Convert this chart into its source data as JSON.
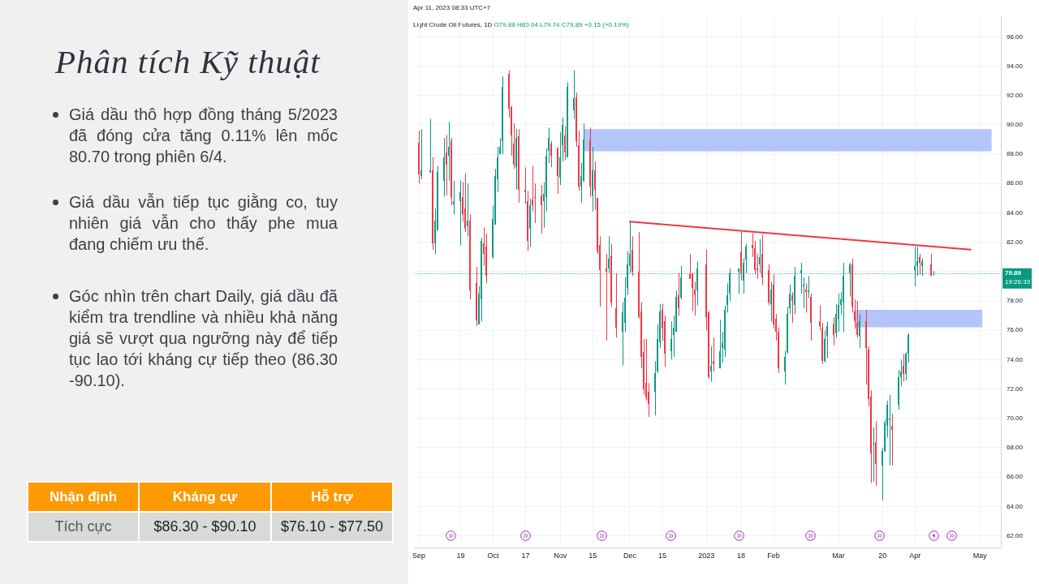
{
  "chart_data": [
    {
      "type": "other",
      "title": "Phân tích Kỹ thuật",
      "annotations": [
        "Giá dầu thô hợp đồng tháng 5/2023 đã đóng cửa tăng 0.11% lên mốc 80.70 trong phiên 6/4.",
        "Giá dầu vẫn tiếp tục giằng co, tuy nhiên giá vẫn cho thấy phe mua đang chiếm ưu thế.",
        "Góc nhìn trên chart Daily, giá dầu đã kiểm tra trendline và nhiều khả năng giá sẽ vượt qua ngưỡng này để tiếp tục lao tới kháng cự tiếp theo (86.30 -90.10)."
      ],
      "categories": [
        "Nhận định",
        "Kháng cự",
        "Hỗ trợ"
      ],
      "value_labels": [
        "Tích cực",
        "$86.30 - $90.10",
        "$76.10 - $77.50"
      ]
    },
    {
      "type": "candlestick",
      "title": "Light Crude Oil Futures, 1D",
      "subtitle": "O79.88 H80.04 L79.74 C79.89 +0.15 (+0.19%)",
      "annotations": [
        "Apr 11, 2023 08:33 UTC+7"
      ],
      "x": [
        "2022-09-01",
        "2022-09-02",
        "2022-09-06",
        "2022-09-07",
        "2022-09-08",
        "2022-09-09",
        "2022-09-12",
        "2022-09-13",
        "2022-09-14",
        "2022-09-15",
        "2022-09-16",
        "2022-09-19",
        "2022-09-20",
        "2022-09-21",
        "2022-09-22",
        "2022-09-23",
        "2022-09-26",
        "2022-09-27",
        "2022-09-28",
        "2022-09-29",
        "2022-09-30",
        "2022-10-03",
        "2022-10-04",
        "2022-10-05",
        "2022-10-06",
        "2022-10-07",
        "2022-10-10",
        "2022-10-11",
        "2022-10-12",
        "2022-10-13",
        "2022-10-14",
        "2022-10-17",
        "2022-10-18",
        "2022-10-19",
        "2022-10-20",
        "2022-10-21",
        "2022-10-24",
        "2022-10-25",
        "2022-10-26",
        "2022-10-27",
        "2022-10-28",
        "2022-10-31",
        "2022-11-01",
        "2022-11-02",
        "2022-11-03",
        "2022-11-04",
        "2022-11-07",
        "2022-11-08",
        "2022-11-09",
        "2022-11-10",
        "2022-11-11",
        "2022-11-14",
        "2022-11-15",
        "2022-11-16",
        "2022-11-17",
        "2022-11-18",
        "2022-11-21",
        "2022-11-22",
        "2022-11-23",
        "2022-11-25",
        "2022-11-28",
        "2022-11-29",
        "2022-11-30",
        "2022-12-01",
        "2022-12-02",
        "2022-12-05",
        "2022-12-06",
        "2022-12-07",
        "2022-12-08",
        "2022-12-09",
        "2022-12-12",
        "2022-12-13",
        "2022-12-14",
        "2022-12-15",
        "2022-12-16",
        "2022-12-19",
        "2022-12-20",
        "2022-12-21",
        "2022-12-22",
        "2022-12-23",
        "2022-12-27",
        "2022-12-28",
        "2022-12-29",
        "2022-12-30",
        "2023-01-03",
        "2023-01-04",
        "2023-01-05",
        "2023-01-06",
        "2023-01-09",
        "2023-01-10",
        "2023-01-11",
        "2023-01-12",
        "2023-01-13",
        "2023-01-17",
        "2023-01-18",
        "2023-01-19",
        "2023-01-20",
        "2023-01-23",
        "2023-01-24",
        "2023-01-25",
        "2023-01-26",
        "2023-01-27",
        "2023-01-30",
        "2023-01-31",
        "2023-02-01",
        "2023-02-02",
        "2023-02-03",
        "2023-02-06",
        "2023-02-07",
        "2023-02-08",
        "2023-02-09",
        "2023-02-10",
        "2023-02-13",
        "2023-02-14",
        "2023-02-15",
        "2023-02-16",
        "2023-02-17",
        "2023-02-21",
        "2023-02-22",
        "2023-02-23",
        "2023-02-24",
        "2023-02-27",
        "2023-02-28",
        "2023-03-01",
        "2023-03-02",
        "2023-03-03",
        "2023-03-06",
        "2023-03-07",
        "2023-03-08",
        "2023-03-09",
        "2023-03-10",
        "2023-03-13",
        "2023-03-14",
        "2023-03-15",
        "2023-03-16",
        "2023-03-17",
        "2023-03-20",
        "2023-03-21",
        "2023-03-22",
        "2023-03-23",
        "2023-03-24",
        "2023-03-27",
        "2023-03-28",
        "2023-03-29",
        "2023-03-30",
        "2023-03-31",
        "2023-04-03",
        "2023-04-04",
        "2023-04-05",
        "2023-04-06",
        "2023-04-10",
        "2023-04-11"
      ],
      "ohlc": [
        [
          88.8,
          89.6,
          86.0,
          86.6
        ],
        [
          86.5,
          89.7,
          86.3,
          86.9
        ],
        [
          86.8,
          90.4,
          86.7,
          86.9
        ],
        [
          86.9,
          87.8,
          81.5,
          81.9
        ],
        [
          81.9,
          84.3,
          81.2,
          83.5
        ],
        [
          82.8,
          87.2,
          82.8,
          86.8
        ],
        [
          86.2,
          89.1,
          85.1,
          87.8
        ],
        [
          88.1,
          89.3,
          85.2,
          87.3
        ],
        [
          87.9,
          90.2,
          86.2,
          88.5
        ],
        [
          88.9,
          89.1,
          84.5,
          85.1
        ],
        [
          84.6,
          86.2,
          83.9,
          84.8
        ],
        [
          84.8,
          86.2,
          81.8,
          85.4
        ],
        [
          85.1,
          86.1,
          83.4,
          83.9
        ],
        [
          84.3,
          86.7,
          82.7,
          82.9
        ],
        [
          83.1,
          86.0,
          82.4,
          83.5
        ],
        [
          83.5,
          83.9,
          78.1,
          78.7
        ],
        [
          79.2,
          80.3,
          76.3,
          76.7
        ],
        [
          76.4,
          79.0,
          76.4,
          78.5
        ],
        [
          78.1,
          82.3,
          76.6,
          82.1
        ],
        [
          81.9,
          83.0,
          80.4,
          81.2
        ],
        [
          81.7,
          82.6,
          79.2,
          79.7
        ],
        [
          81.0,
          84.5,
          80.9,
          83.6
        ],
        [
          83.2,
          87.0,
          83.2,
          86.5
        ],
        [
          86.3,
          88.5,
          85.4,
          87.8
        ],
        [
          88.0,
          89.1,
          88.0,
          88.5
        ],
        [
          88.9,
          93.3,
          88.0,
          92.6
        ],
        [
          93.5,
          93.7,
          90.5,
          91.1
        ],
        [
          91.2,
          91.3,
          87.9,
          89.3
        ],
        [
          88.7,
          90.1,
          87.0,
          87.3
        ],
        [
          87.1,
          89.7,
          85.6,
          89.1
        ],
        [
          89.2,
          89.7,
          84.7,
          85.6
        ],
        [
          85.6,
          87.1,
          84.6,
          85.4
        ],
        [
          84.8,
          85.5,
          81.4,
          82.1
        ],
        [
          82.9,
          85.0,
          81.7,
          84.5
        ],
        [
          84.9,
          87.2,
          84.1,
          84.5
        ],
        [
          85.1,
          86.0,
          83.3,
          85.0
        ],
        [
          85.2,
          85.9,
          82.6,
          84.5
        ],
        [
          84.8,
          86.1,
          83.0,
          85.3
        ],
        [
          85.1,
          88.4,
          84.1,
          87.9
        ],
        [
          88.2,
          89.8,
          87.4,
          89.1
        ],
        [
          88.7,
          88.9,
          87.1,
          87.9
        ],
        [
          88.4,
          88.5,
          85.3,
          86.5
        ],
        [
          86.4,
          89.5,
          85.9,
          87.8
        ],
        [
          88.6,
          90.5,
          87.5,
          90.0
        ],
        [
          89.3,
          89.9,
          87.6,
          88.1
        ],
        [
          87.8,
          92.9,
          87.8,
          92.6
        ],
        [
          91.0,
          93.7,
          90.4,
          91.8
        ],
        [
          91.9,
          92.2,
          88.5,
          88.9
        ],
        [
          88.6,
          89.6,
          85.5,
          85.8
        ],
        [
          85.8,
          87.4,
          84.7,
          86.5
        ],
        [
          86.2,
          90.1,
          86.1,
          89.0
        ],
        [
          89.0,
          89.8,
          85.1,
          85.8
        ],
        [
          85.2,
          88.5,
          84.1,
          86.9
        ],
        [
          86.9,
          87.5,
          84.2,
          85.6
        ],
        [
          85.0,
          85.0,
          81.2,
          81.4
        ],
        [
          81.8,
          82.4,
          77.6,
          80.1
        ],
        [
          80.2,
          81.2,
          75.3,
          80.0
        ],
        [
          80.2,
          82.4,
          79.9,
          80.9
        ],
        [
          81.1,
          81.9,
          77.6,
          77.9
        ],
        [
          77.5,
          79.9,
          75.5,
          76.2
        ],
        [
          75.9,
          77.9,
          73.6,
          77.2
        ],
        [
          76.5,
          79.6,
          75.9,
          78.2
        ],
        [
          78.9,
          81.4,
          78.4,
          80.5
        ],
        [
          80.4,
          83.4,
          79.9,
          81.2
        ],
        [
          81.5,
          82.4,
          79.7,
          80.0
        ],
        [
          80.0,
          82.7,
          76.8,
          76.9
        ],
        [
          77.3,
          77.9,
          73.4,
          74.2
        ],
        [
          74.5,
          75.4,
          71.6,
          72.0
        ],
        [
          72.4,
          75.4,
          71.2,
          71.4
        ],
        [
          71.8,
          72.4,
          70.1,
          71.0
        ],
        [
          71.8,
          73.9,
          70.2,
          73.1
        ],
        [
          73.2,
          76.4,
          73.1,
          75.4
        ],
        [
          75.2,
          77.8,
          74.8,
          77.3
        ],
        [
          77.4,
          77.8,
          75.3,
          76.1
        ],
        [
          76.6,
          77.0,
          73.5,
          74.4
        ],
        [
          74.6,
          76.6,
          74.0,
          75.4
        ],
        [
          75.7,
          77.0,
          74.2,
          76.2
        ],
        [
          75.9,
          78.7,
          75.9,
          78.3
        ],
        [
          78.4,
          79.9,
          77.0,
          77.5
        ],
        [
          78.2,
          80.4,
          78.1,
          79.6
        ],
        [
          79.9,
          81.2,
          79.5,
          79.5
        ],
        [
          79.9,
          79.9,
          77.3,
          78.9
        ],
        [
          78.8,
          79.3,
          77.0,
          78.4
        ],
        [
          78.7,
          80.7,
          77.7,
          80.2
        ],
        [
          80.5,
          81.5,
          76.0,
          76.9
        ],
        [
          77.2,
          77.3,
          72.7,
          72.8
        ],
        [
          73.2,
          74.9,
          72.5,
          73.6
        ],
        [
          73.9,
          75.5,
          73.2,
          73.7
        ],
        [
          73.4,
          76.7,
          73.4,
          74.6
        ],
        [
          74.8,
          75.9,
          73.8,
          75.1
        ],
        [
          74.7,
          77.7,
          74.2,
          77.4
        ],
        [
          77.7,
          79.2,
          77.2,
          78.4
        ],
        [
          78.5,
          80.2,
          78.0,
          79.9
        ],
        [
          80.0,
          80.2,
          78.5,
          80.2
        ],
        [
          81.3,
          82.7,
          79.4,
          79.9
        ],
        [
          79.4,
          80.9,
          78.5,
          80.6
        ],
        [
          80.8,
          81.9,
          79.9,
          81.7
        ],
        [
          81.8,
          82.6,
          81.0,
          81.6
        ],
        [
          81.6,
          82.1,
          79.8,
          80.1
        ],
        [
          80.2,
          81.2,
          79.5,
          80.1
        ],
        [
          80.5,
          82.2,
          79.9,
          81.0
        ],
        [
          81.2,
          82.5,
          79.1,
          79.6
        ],
        [
          80.1,
          80.5,
          77.7,
          77.9
        ],
        [
          77.8,
          79.3,
          76.6,
          78.8
        ],
        [
          79.1,
          79.8,
          76.1,
          76.4
        ],
        [
          76.8,
          77.1,
          75.3,
          75.9
        ],
        [
          75.9,
          76.2,
          73.1,
          73.4
        ],
        [
          73.2,
          74.6,
          72.3,
          74.2
        ],
        [
          74.5,
          77.6,
          74.4,
          77.1
        ],
        [
          77.5,
          79.1,
          77.1,
          78.5
        ],
        [
          78.4,
          78.6,
          76.5,
          78.0
        ],
        [
          77.7,
          80.3,
          77.1,
          79.7
        ],
        [
          79.9,
          80.6,
          78.5,
          80.1
        ],
        [
          79.0,
          79.6,
          77.5,
          79.1
        ],
        [
          78.8,
          79.2,
          77.2,
          78.6
        ],
        [
          78.6,
          79.7,
          78.2,
          78.7
        ],
        [
          78.3,
          78.5,
          75.3,
          76.5
        ],
        [
          76.6,
          77.7,
          76.0,
          76.3
        ],
        [
          76.1,
          76.5,
          73.7,
          73.9
        ],
        [
          73.9,
          76.0,
          73.8,
          75.4
        ],
        [
          75.6,
          76.6,
          74.1,
          76.3
        ],
        [
          76.4,
          76.9,
          75.0,
          75.7
        ],
        [
          75.8,
          77.8,
          75.5,
          77.1
        ],
        [
          76.8,
          78.5,
          75.9,
          77.7
        ],
        [
          77.7,
          78.6,
          77.1,
          78.1
        ],
        [
          77.9,
          80.6,
          75.9,
          79.7
        ],
        [
          79.9,
          80.6,
          78.3,
          80.5
        ],
        [
          80.5,
          80.9,
          77.2,
          77.6
        ],
        [
          77.3,
          78.1,
          76.1,
          76.6
        ],
        [
          76.5,
          78.0,
          75.5,
          75.7
        ],
        [
          75.6,
          77.1,
          74.8,
          76.6
        ],
        [
          76.6,
          77.4,
          72.3,
          74.8
        ],
        [
          74.7,
          74.9,
          70.8,
          71.3
        ],
        [
          71.5,
          71.9,
          65.6,
          67.6
        ],
        [
          68.2,
          69.4,
          65.7,
          68.3
        ],
        [
          68.4,
          69.8,
          65.4,
          66.9
        ],
        [
          66.8,
          68.0,
          64.4,
          67.8
        ],
        [
          67.8,
          69.9,
          67.7,
          69.7
        ],
        [
          69.5,
          71.2,
          68.7,
          70.9
        ],
        [
          69.9,
          71.6,
          66.8,
          70.0
        ],
        [
          69.5,
          70.3,
          66.8,
          69.2
        ],
        [
          70.9,
          73.3,
          70.6,
          72.8
        ],
        [
          72.8,
          74.0,
          72.2,
          73.2
        ],
        [
          73.6,
          74.4,
          72.5,
          73.0
        ],
        [
          73.0,
          74.5,
          72.6,
          74.4
        ],
        [
          74.4,
          75.8,
          73.8,
          75.7
        ],
        [
          80.1,
          81.7,
          79.0,
          80.4
        ],
        [
          80.4,
          81.7,
          79.7,
          80.7
        ],
        [
          81.0,
          81.2,
          79.8,
          80.6
        ],
        [
          80.4,
          80.9,
          79.7,
          80.7
        ],
        [
          80.5,
          81.2,
          79.7,
          79.7
        ],
        [
          79.88,
          80.04,
          79.74,
          79.89
        ]
      ],
      "colors": [
        "#f23645",
        "#089981",
        "#089981",
        "#f23645",
        "#089981",
        "#089981",
        "#089981",
        "#f23645",
        "#089981",
        "#f23645",
        "#089981",
        "#089981",
        "#f23645",
        "#f23645",
        "#089981",
        "#f23645",
        "#f23645",
        "#089981",
        "#089981",
        "#f23645",
        "#f23645",
        "#089981",
        "#089981",
        "#089981",
        "#089981",
        "#089981",
        "#f23645",
        "#f23645",
        "#f23645",
        "#089981",
        "#f23645",
        "#f23645",
        "#f23645",
        "#089981",
        "#f23645",
        "#f23645",
        "#f23645",
        "#089981",
        "#089981",
        "#089981",
        "#f23645",
        "#f23645",
        "#089981",
        "#089981",
        "#f23645",
        "#089981",
        "#089981",
        "#f23645",
        "#f23645",
        "#089981",
        "#089981",
        "#f23645",
        "#089981",
        "#f23645",
        "#f23645",
        "#f23645",
        "#f23645",
        "#089981",
        "#f23645",
        "#f23645",
        "#089981",
        "#089981",
        "#089981",
        "#089981",
        "#f23645",
        "#f23645",
        "#f23645",
        "#f23645",
        "#f23645",
        "#f23645",
        "#089981",
        "#089981",
        "#089981",
        "#f23645",
        "#f23645",
        "#089981",
        "#089981",
        "#089981",
        "#f23645",
        "#089981",
        "#f23645",
        "#f23645",
        "#f23645",
        "#089981",
        "#f23645",
        "#f23645",
        "#089981",
        "#f23645",
        "#089981",
        "#089981",
        "#089981",
        "#089981",
        "#089981",
        "#089981",
        "#f23645",
        "#089981",
        "#089981",
        "#f23645",
        "#f23645",
        "#f23645",
        "#089981",
        "#f23645",
        "#f23645",
        "#089981",
        "#f23645",
        "#f23645",
        "#f23645",
        "#089981",
        "#089981",
        "#089981",
        "#f23645",
        "#089981",
        "#089981",
        "#089981",
        "#f23645",
        "#089981",
        "#f23645",
        "#f23645",
        "#f23645",
        "#089981",
        "#089981",
        "#f23645",
        "#089981",
        "#089981",
        "#089981",
        "#089981",
        "#089981",
        "#f23645",
        "#f23645",
        "#f23645",
        "#089981",
        "#f23645",
        "#f23645",
        "#f23645",
        "#089981",
        "#f23645",
        "#089981",
        "#089981",
        "#089981",
        "#089981",
        "#f23645",
        "#089981",
        "#089981",
        "#f23645",
        "#089981",
        "#089981",
        "#089981",
        "#089981",
        "#f23645",
        "#089981",
        "#f23645",
        "#089981"
      ],
      "series": [
        {
          "type": "area",
          "x": [
            "2022-11-11",
            "2023-05-06"
          ],
          "values": [
            null,
            null
          ],
          "lower": [
            88.2,
            88.2
          ],
          "upper": [
            89.7,
            89.7
          ],
          "color": "#b3c5fb"
        },
        {
          "type": "area",
          "x": [
            "2023-03-08",
            "2023-05-02"
          ],
          "values": [
            null,
            null
          ],
          "lower": [
            76.2,
            76.2
          ],
          "upper": [
            77.4,
            77.4
          ],
          "color": "#b3c5fb"
        },
        {
          "type": "line",
          "x": [
            "2022-12-01",
            "2023-04-27"
          ],
          "values": [
            83.4,
            81.5
          ],
          "color": "#f23645"
        }
      ],
      "ref_lines": [
        {
          "axis": "y",
          "value": 79.89,
          "label": "79.89\n19:26:33",
          "color": "#089981",
          "line_style": "dotted"
        }
      ],
      "xlim": [
        "2022-08-30",
        "2023-05-10"
      ],
      "xticks": [
        {
          "value": "2022-09-01",
          "label": "Sep"
        },
        {
          "value": "2022-09-19",
          "label": "19"
        },
        {
          "value": "2022-10-03",
          "label": "Oct"
        },
        {
          "value": "2022-10-17",
          "label": "17"
        },
        {
          "value": "2022-11-01",
          "label": "Nov"
        },
        {
          "value": "2022-11-15",
          "label": "15"
        },
        {
          "value": "2022-12-01",
          "label": "Dec"
        },
        {
          "value": "2022-12-15",
          "label": "15"
        },
        {
          "value": "2023-01-03",
          "label": "2023"
        },
        {
          "value": "2023-01-18",
          "label": "18"
        },
        {
          "value": "2023-02-01",
          "label": "Feb"
        },
        {
          "value": "2023-03-01",
          "label": "Mar"
        },
        {
          "value": "2023-03-20",
          "label": "20"
        },
        {
          "value": "2023-04-03",
          "label": "Apr"
        },
        {
          "value": "2023-05-01",
          "label": "May"
        }
      ],
      "ylim": [
        61.2,
        97.4
      ],
      "yticks": [
        {
          "value": 62,
          "label": "62.00"
        },
        {
          "value": 64,
          "label": "64.00"
        },
        {
          "value": 66,
          "label": "66.00"
        },
        {
          "value": 68,
          "label": "68.00"
        },
        {
          "value": 70,
          "label": "70.00"
        },
        {
          "value": 72,
          "label": "72.00"
        },
        {
          "value": 74,
          "label": "74.00"
        },
        {
          "value": 76,
          "label": "76.00"
        },
        {
          "value": 78,
          "label": "78.00"
        },
        {
          "value": 80,
          "label": null
        },
        {
          "value": 82,
          "label": "82.00"
        },
        {
          "value": 84,
          "label": "84.00"
        },
        {
          "value": 86,
          "label": "86.00"
        },
        {
          "value": 88,
          "label": "88.00"
        },
        {
          "value": 90,
          "label": "90.00"
        },
        {
          "value": 92,
          "label": "92.00"
        },
        {
          "value": 94,
          "label": "94.00"
        },
        {
          "value": 96,
          "label": "96.00"
        }
      ],
      "grid": true
    }
  ]
}
